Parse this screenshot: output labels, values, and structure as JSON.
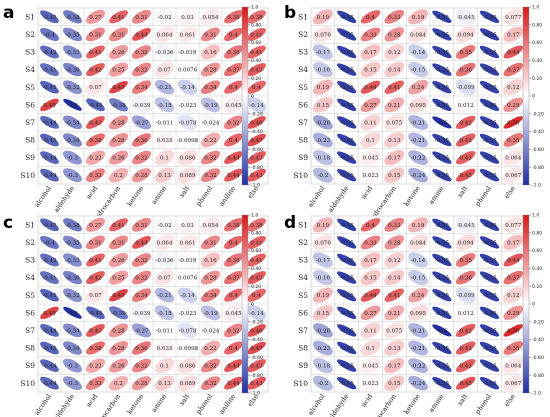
{
  "panel_labels": [
    "a",
    "b",
    "c",
    "d"
  ],
  "chart_data": [
    {
      "type": "heatmap",
      "panel": "a",
      "rows": [
        "S1",
        "S2",
        "S3",
        "S4",
        "S5",
        "S6",
        "S7",
        "S8",
        "S9",
        "S10"
      ],
      "columns": [
        "alcohol",
        "aldehyde",
        "acid",
        "hydrocarbon",
        "ketone",
        "amine",
        "salt",
        "phenol",
        "aniline",
        "else"
      ],
      "colorbar_ticks": [
        "1.0",
        "0.80",
        "0.60",
        "0.40",
        "0.20",
        "0",
        "-0.20",
        "-0.40",
        "-0.60",
        "-0.80",
        "-1.0"
      ],
      "values": [
        [
          -0.45,
          -0.38,
          0.27,
          0.41,
          0.31,
          -0.02,
          0.03,
          0.054,
          0.38,
          0.38
        ],
        [
          -0.4,
          -0.35,
          0.31,
          0.31,
          0.44,
          0.064,
          0.061,
          0.31,
          0.4,
          0.41
        ],
        [
          -0.42,
          -0.33,
          0.41,
          0.26,
          0.32,
          -0.036,
          -0.019,
          0.16,
          0.36,
          0.41
        ],
        [
          -0.41,
          -0.36,
          0.42,
          0.25,
          0.32,
          0.07,
          0.0076,
          0.28,
          0.37,
          0.43
        ],
        [
          -0.45,
          -0.32,
          0.07,
          0.49,
          0.34,
          -0.21,
          -0.14,
          0.34,
          0.4,
          0.4
        ],
        [
          0.49,
          -0.6,
          -0.45,
          -0.38,
          -0.039,
          -0.18,
          -0.023,
          -0.19,
          0.045,
          -0.14
        ],
        [
          -0.44,
          -0.34,
          0.43,
          0.28,
          -0.27,
          -0.011,
          -0.078,
          -0.024,
          0.32,
          0.46
        ],
        [
          -0.45,
          -0.34,
          0.38,
          0.28,
          0.36,
          0.035,
          -0.0098,
          0.22,
          0.4,
          0.47
        ],
        [
          -0.44,
          -0.3,
          0.23,
          0.26,
          0.32,
          0.1,
          0.086,
          0.32,
          0.44,
          0.43
        ],
        [
          -0.44,
          -0.3,
          0.33,
          0.2,
          0.28,
          0.13,
          0.089,
          0.32,
          0.44,
          0.43
        ]
      ]
    },
    {
      "type": "heatmap",
      "panel": "b",
      "rows": [
        "S1",
        "S2",
        "S3",
        "S4",
        "S5",
        "S6",
        "S7",
        "S8",
        "S9",
        "S10"
      ],
      "columns": [
        "alcohol",
        "aldehyde",
        "acid",
        "hydrocarbon",
        "ketone",
        "amine",
        "salt",
        "phenol",
        "else"
      ],
      "colorbar_ticks": [
        "1.0",
        "0.80",
        "0.60",
        "0.40",
        "0.20",
        "0",
        "-0.20",
        "-0.40",
        "-0.60",
        "-0.80",
        "-1.0"
      ],
      "values": [
        [
          0.19,
          -0.55,
          0.4,
          0.33,
          0.19,
          -0.55,
          -0.045,
          -0.55,
          0.077
        ],
        [
          0.076,
          -0.55,
          0.33,
          0.28,
          0.084,
          -0.55,
          0.094,
          -0.55,
          0.17
        ],
        [
          -0.17,
          -0.55,
          0.17,
          0.12,
          -0.14,
          -0.55,
          0.35,
          -0.55,
          0.44
        ],
        [
          -0.16,
          -0.55,
          0.15,
          0.14,
          -0.15,
          -0.55,
          0.36,
          -0.55,
          0.37
        ],
        [
          0.19,
          -0.55,
          0.44,
          0.41,
          0.24,
          -0.55,
          -0.099,
          -0.55,
          0.12
        ],
        [
          0.15,
          -0.55,
          0.27,
          0.21,
          0.095,
          -0.55,
          0.012,
          -0.55,
          0.29
        ],
        [
          -0.26,
          -0.55,
          0.11,
          0.075,
          -0.21,
          -0.6,
          0.42,
          -0.55,
          0.56
        ],
        [
          -0.23,
          -0.55,
          0.1,
          0.13,
          -0.21,
          -0.55,
          0.42,
          -0.55,
          0.35
        ],
        [
          -0.18,
          -0.55,
          0.045,
          0.17,
          -0.22,
          -0.55,
          0.42,
          -0.55,
          0.064
        ],
        [
          -0.2,
          -0.55,
          0.023,
          0.15,
          -0.24,
          -0.55,
          0.45,
          -0.55,
          0.067
        ]
      ]
    },
    {
      "type": "heatmap",
      "panel": "c",
      "rows": [
        "S1",
        "S2",
        "S3",
        "S4",
        "S5",
        "S6",
        "S7",
        "S8",
        "S9",
        "S10"
      ],
      "columns": [
        "alcohol",
        "aldehyde",
        "acid",
        "hydrocarbon",
        "ketone",
        "amine",
        "salt",
        "phenol",
        "aniline",
        "else"
      ],
      "colorbar_ticks": [
        "1.0",
        "0.80",
        "0.60",
        "0.40",
        "0.20",
        "0",
        "-0.20",
        "-0.40",
        "-0.60",
        "-0.80",
        "-1.0"
      ],
      "values": [
        [
          -0.45,
          -0.38,
          0.27,
          0.41,
          0.31,
          -0.02,
          0.03,
          0.054,
          0.38,
          0.38
        ],
        [
          -0.4,
          -0.35,
          0.31,
          0.31,
          0.44,
          0.064,
          0.061,
          0.31,
          0.4,
          0.41
        ],
        [
          -0.42,
          -0.33,
          0.41,
          0.26,
          0.32,
          -0.036,
          -0.019,
          0.16,
          0.36,
          0.41
        ],
        [
          -0.41,
          -0.36,
          0.42,
          0.25,
          0.32,
          0.07,
          0.0076,
          0.28,
          0.37,
          0.43
        ],
        [
          -0.45,
          -0.32,
          0.07,
          0.49,
          0.34,
          -0.21,
          -0.14,
          0.34,
          0.4,
          0.4
        ],
        [
          0.49,
          -0.6,
          -0.45,
          -0.39,
          -0.039,
          -0.18,
          -0.023,
          -0.19,
          0.045,
          -0.14
        ],
        [
          -0.44,
          -0.34,
          0.43,
          0.28,
          -0.27,
          -0.011,
          -0.078,
          -0.024,
          0.32,
          0.46
        ],
        [
          -0.45,
          -0.34,
          0.38,
          0.28,
          0.36,
          0.035,
          -0.0098,
          0.22,
          0.4,
          0.47
        ],
        [
          -0.44,
          -0.3,
          0.23,
          0.26,
          0.32,
          0.1,
          0.086,
          0.32,
          0.44,
          0.43
        ],
        [
          -0.44,
          -0.3,
          0.33,
          0.2,
          0.28,
          0.13,
          0.089,
          0.32,
          0.44,
          0.43
        ]
      ]
    },
    {
      "type": "heatmap",
      "panel": "d",
      "rows": [
        "S1",
        "S2",
        "S3",
        "S4",
        "S5",
        "S6",
        "S7",
        "S8",
        "S9",
        "S10"
      ],
      "columns": [
        "alcohol",
        "aldehyde",
        "acid",
        "hydrocarbon",
        "ketone",
        "amine",
        "salt",
        "phenol",
        "else"
      ],
      "colorbar_ticks": [
        "1.0",
        "0.80",
        "0.60",
        "0.40",
        "0.20",
        "0",
        "-0.20",
        "-0.40",
        "-0.60",
        "-0.80",
        "-1.0"
      ],
      "values": [
        [
          0.19,
          -0.55,
          0.4,
          0.33,
          0.19,
          -0.55,
          -0.045,
          -0.55,
          0.077
        ],
        [
          0.076,
          -0.55,
          0.33,
          0.28,
          0.084,
          -0.55,
          0.094,
          -0.55,
          0.17
        ],
        [
          -0.17,
          -0.55,
          0.17,
          0.12,
          -0.14,
          -0.55,
          0.35,
          -0.55,
          0.44
        ],
        [
          -0.16,
          -0.55,
          0.15,
          0.14,
          -0.15,
          -0.55,
          0.36,
          -0.55,
          0.37
        ],
        [
          0.19,
          -0.55,
          0.44,
          0.41,
          0.24,
          -0.55,
          -0.099,
          -0.55,
          0.12
        ],
        [
          0.15,
          -0.55,
          0.27,
          0.21,
          0.095,
          -0.55,
          0.012,
          -0.55,
          0.29
        ],
        [
          -0.26,
          -0.55,
          0.11,
          0.075,
          -0.21,
          -0.6,
          0.42,
          -0.55,
          0.56
        ],
        [
          -0.23,
          -0.55,
          0.1,
          0.13,
          -0.21,
          -0.55,
          0.42,
          -0.55,
          0.35
        ],
        [
          -0.18,
          -0.55,
          0.045,
          0.17,
          -0.22,
          -0.55,
          0.42,
          -0.55,
          0.064
        ],
        [
          -0.2,
          -0.55,
          0.023,
          0.15,
          -0.24,
          -0.55,
          0.45,
          -0.55,
          0.067
        ]
      ]
    }
  ],
  "colors": {
    "positive": "#d7191c",
    "negative": "#1f2fa0",
    "neutral": "#ffffff",
    "grid": "#c8c8c8"
  }
}
